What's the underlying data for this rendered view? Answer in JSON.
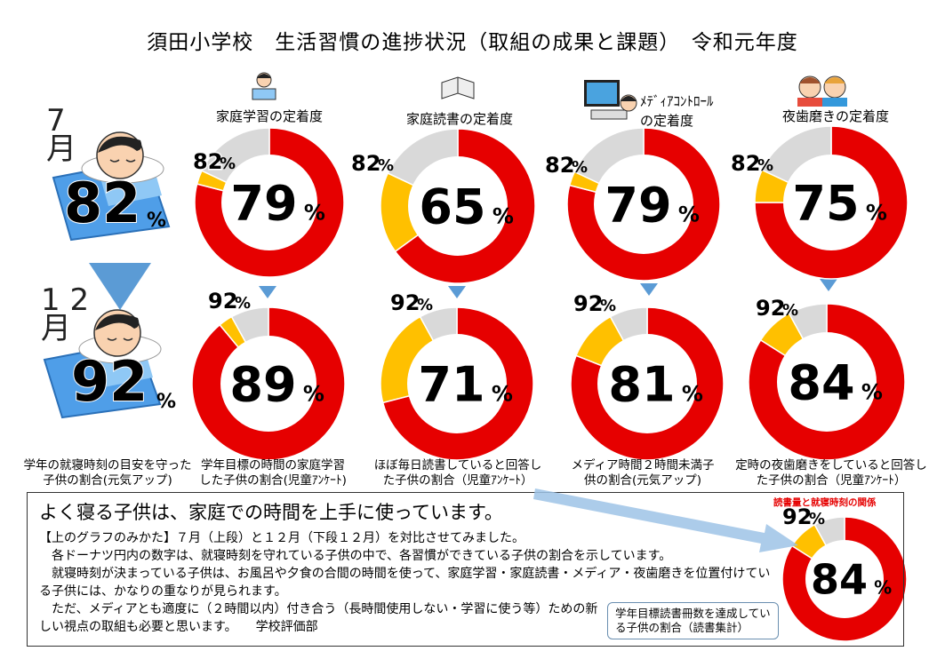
{
  "title": "須田小学校　生活習慣の進捗状況（取組の成果と課題）　令和元年度",
  "months": {
    "july": "7\n月",
    "december": "1 2\n月"
  },
  "sleep": {
    "july_value": "82",
    "december_value": "92",
    "unit": "%",
    "caption": "学年の就寝時刻の目安を守った子供の割合(元気アップ)"
  },
  "headline": "よく寝る子供は、家庭での時間を上手に使っています。",
  "paragraphs": [
    "【上のグラフのみかた】７月（上段）と１２月（下段１２月）を対比させてみました。",
    "　各ドーナツ円内の数字は、就寝時刻を守れている子供の中で、各習慣ができている子供の割合を示しています。",
    "　就寝時刻が決まっている子供は、お風呂や夕食の合間の時間を使って、家庭学習・家庭読書・メディア・夜歯磨きを位置付けている子供には、かなりの重なりが見られます。",
    "　ただ、メディアとも適度に（２時間以内）付き合う（長時間使用しない・学習に使う等）ための新しい視点の取組も必要と思います。　　学校評価部"
  ],
  "corner_title": "読書量と就寝時刻の関係",
  "corner_callout": "学年目標読書冊数を達成している子供の割合（読書集計）",
  "colors": {
    "red": "#e60000",
    "yellow": "#ffc000",
    "grey": "#d9d9d9",
    "arrow": "#5b9bd5",
    "blue": "#6fa8dc"
  },
  "chart_data": [
    {
      "type": "pie",
      "title": "家庭学習の定着度",
      "month": "7月",
      "center_label": "79",
      "outer_label": "82",
      "unit": "%",
      "slices": [
        {
          "name": "habit",
          "value": 79
        },
        {
          "name": "sleep-only",
          "value": 3
        },
        {
          "name": "other",
          "value": 18
        }
      ],
      "caption": ""
    },
    {
      "type": "pie",
      "title": "家庭読書の定着度",
      "month": "7月",
      "center_label": "65",
      "outer_label": "82",
      "unit": "%",
      "slices": [
        {
          "name": "habit",
          "value": 65
        },
        {
          "name": "sleep-only",
          "value": 17
        },
        {
          "name": "other",
          "value": 18
        }
      ],
      "caption": ""
    },
    {
      "type": "pie",
      "title": "ﾒﾃﾞｨｱｺﾝﾄﾛｰﾙ\nの定着度",
      "month": "7月",
      "center_label": "79",
      "outer_label": "82",
      "unit": "%",
      "slices": [
        {
          "name": "habit",
          "value": 79
        },
        {
          "name": "sleep-only",
          "value": 3
        },
        {
          "name": "other",
          "value": 18
        }
      ],
      "caption": ""
    },
    {
      "type": "pie",
      "title": "夜歯磨きの定着度",
      "month": "7月",
      "center_label": "75",
      "outer_label": "82",
      "unit": "%",
      "slices": [
        {
          "name": "habit",
          "value": 75
        },
        {
          "name": "sleep-only",
          "value": 7
        },
        {
          "name": "other",
          "value": 18
        }
      ],
      "caption": ""
    },
    {
      "type": "pie",
      "title": "",
      "month": "12月",
      "center_label": "89",
      "outer_label": "92",
      "unit": "%",
      "slices": [
        {
          "name": "habit",
          "value": 89
        },
        {
          "name": "sleep-only",
          "value": 3
        },
        {
          "name": "other",
          "value": 8
        }
      ],
      "caption": "学年目標の時間の家庭学習した子供の割合(児童ｱﾝｹｰﾄ)"
    },
    {
      "type": "pie",
      "title": "",
      "month": "12月",
      "center_label": "71",
      "outer_label": "92",
      "unit": "%",
      "slices": [
        {
          "name": "habit",
          "value": 71
        },
        {
          "name": "sleep-only",
          "value": 21
        },
        {
          "name": "other",
          "value": 8
        }
      ],
      "caption": "ほぼ毎日読書していると回答した子供の割合（児童ｱﾝｹｰﾄ）"
    },
    {
      "type": "pie",
      "title": "",
      "month": "12月",
      "center_label": "81",
      "outer_label": "92",
      "unit": "%",
      "slices": [
        {
          "name": "habit",
          "value": 81
        },
        {
          "name": "sleep-only",
          "value": 11
        },
        {
          "name": "other",
          "value": 8
        }
      ],
      "caption": "メディア時間２時間未満子供の割合(元気アップ)"
    },
    {
      "type": "pie",
      "title": "",
      "month": "12月",
      "center_label": "84",
      "outer_label": "92",
      "unit": "%",
      "slices": [
        {
          "name": "habit",
          "value": 84
        },
        {
          "name": "sleep-only",
          "value": 8
        },
        {
          "name": "other",
          "value": 8
        }
      ],
      "caption": "定時の夜歯磨きをしていると回答した子供の割合（児童ｱﾝｹｰﾄ）"
    },
    {
      "type": "pie",
      "title": "",
      "month": "",
      "center_label": "84",
      "outer_label": "92",
      "unit": "%",
      "slices": [
        {
          "name": "habit",
          "value": 84
        },
        {
          "name": "sleep-only",
          "value": 8
        },
        {
          "name": "other",
          "value": 8
        }
      ],
      "caption": ""
    }
  ]
}
